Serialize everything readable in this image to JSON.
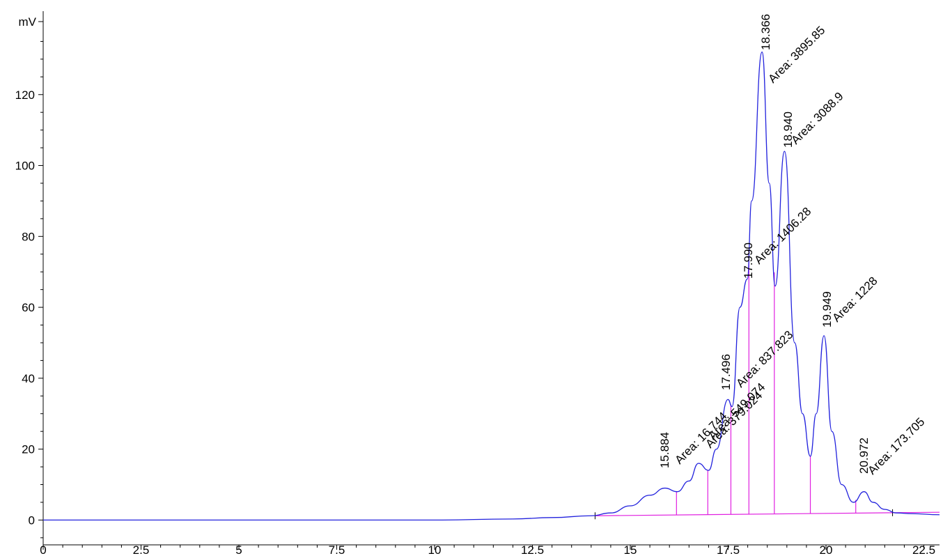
{
  "chart_data": {
    "type": "line",
    "title": "",
    "xlabel": "",
    "ylabel": "mV",
    "xlim": [
      0,
      22.9
    ],
    "ylim": [
      -7,
      140
    ],
    "x_ticks": [
      "0",
      "2.5",
      "5",
      "7.5",
      "10",
      "12.5",
      "15",
      "17.5",
      "20",
      "22.5"
    ],
    "y_ticks": [
      "0",
      "20",
      "40",
      "60",
      "80",
      "100",
      "120"
    ],
    "grid": false,
    "colors": {
      "trace": "#2222dd",
      "integration": "#e020e0",
      "axis": "#000000"
    },
    "trace": {
      "x": [
        0,
        5,
        10,
        12,
        13,
        14,
        14.5,
        15,
        15.5,
        15.884,
        16.2,
        16.5,
        16.744,
        17.0,
        17.2,
        17.496,
        17.6,
        17.8,
        17.99,
        18.1,
        18.366,
        18.55,
        18.7,
        18.94,
        19.2,
        19.4,
        19.6,
        19.75,
        19.949,
        20.15,
        20.4,
        20.7,
        20.972,
        21.2,
        21.5,
        21.8,
        22.2,
        22.9
      ],
      "y": [
        0,
        0,
        0,
        0.3,
        0.7,
        1.2,
        2,
        4,
        7,
        9,
        8,
        11,
        16,
        14,
        20,
        34,
        32,
        60,
        68,
        90,
        132,
        95,
        66,
        104,
        50,
        30,
        18,
        30,
        52,
        25,
        10,
        5,
        8,
        5,
        3,
        2,
        1.8,
        1.5
      ]
    },
    "baseline": {
      "x": [
        14.1,
        22.9
      ],
      "y": [
        1.2,
        2.2
      ]
    },
    "drop_lines": [
      16.18,
      16.98,
      17.57,
      18.03,
      18.68,
      19.6,
      20.76
    ],
    "peaks": [
      {
        "rt": "15.884",
        "area": "Area: 16.744"
      },
      {
        "rt": "",
        "area": "Area: 379.024"
      },
      {
        "rt": "17.496",
        "area": "Area: 549.074"
      },
      {
        "rt": "17.990",
        "area": "Area: 837.823"
      },
      {
        "rt": "18.366",
        "area": "Area: 3895.85"
      },
      {
        "rt": "18.940",
        "area": "Area: 3088.9"
      },
      {
        "rt": "",
        "area": "Area: 1406.28"
      },
      {
        "rt": "19.949",
        "area": "Area: 1228"
      },
      {
        "rt": "20.972",
        "area": "Area: 173.705"
      }
    ]
  }
}
